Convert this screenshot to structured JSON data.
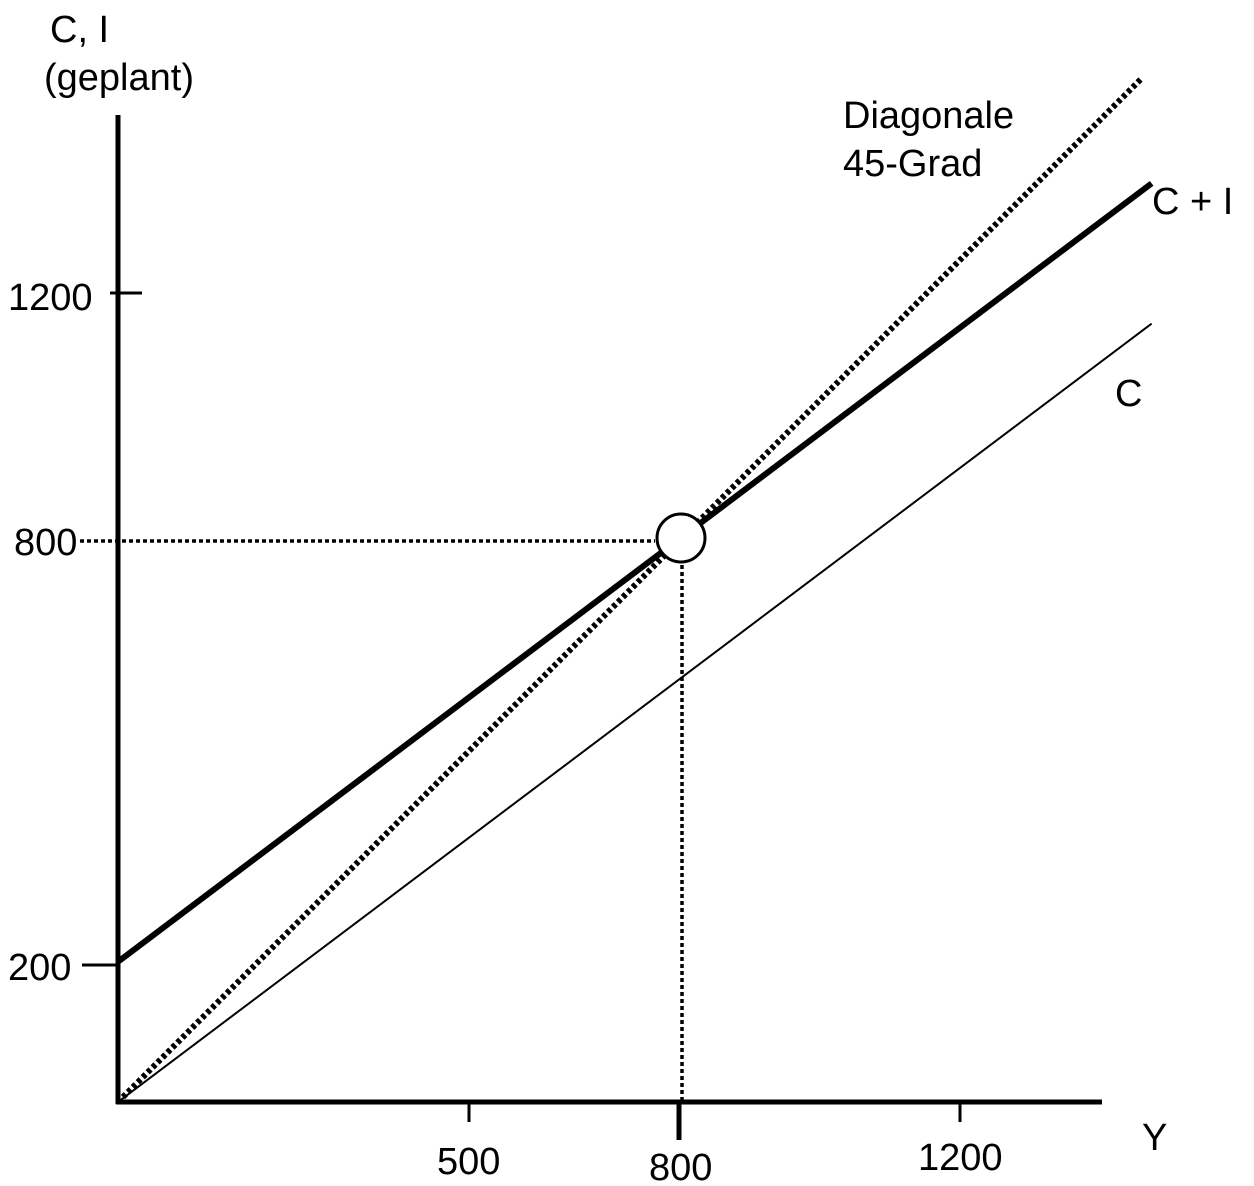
{
  "chart_data": {
    "type": "line",
    "ylabel_line1": "C, I",
    "ylabel_line2": "(geplant)",
    "xlabel": "Y",
    "xlim": [
      0,
      1400
    ],
    "ylim": [
      0,
      1400
    ],
    "x_ticks": [
      {
        "value": 500,
        "label": "500"
      },
      {
        "value": 800,
        "label": "800",
        "emphasis": true
      },
      {
        "value": 1200,
        "label": "1200"
      }
    ],
    "y_ticks": [
      {
        "value": 200,
        "label": "200"
      },
      {
        "value": 800,
        "label": "800",
        "dotted_guide": true
      },
      {
        "value": 1200,
        "label": "1200"
      }
    ],
    "series": [
      {
        "name": "C",
        "x": [
          0,
          1474
        ],
        "y": [
          0,
          1110
        ],
        "style": "thin-solid"
      },
      {
        "name": "C + I",
        "x": [
          0,
          1474
        ],
        "y": [
          200,
          1310
        ],
        "style": "thick-solid"
      },
      {
        "name": "Diagonale 45-Grad",
        "label_line1": "Diagonale",
        "label_line2": "45-Grad",
        "x": [
          0,
          1460
        ],
        "y": [
          0,
          1460
        ],
        "style": "dotted"
      }
    ],
    "equilibrium": {
      "x": 800,
      "y": 800
    },
    "colors": {
      "lines": "#000000",
      "background": "#ffffff"
    }
  }
}
